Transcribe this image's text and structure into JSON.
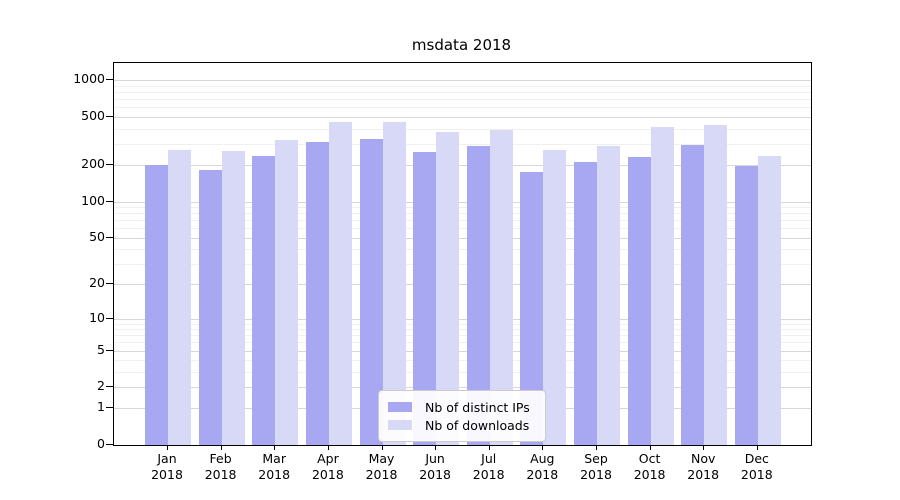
{
  "figure": {
    "background": "#ffffff"
  },
  "chart_data": {
    "type": "bar",
    "title": "msdata 2018",
    "xlabel": "",
    "ylabel": "",
    "year_label": "2018",
    "categories": [
      "Jan",
      "Feb",
      "Mar",
      "Apr",
      "May",
      "Jun",
      "Jul",
      "Aug",
      "Sep",
      "Oct",
      "Nov",
      "Dec"
    ],
    "series": [
      {
        "name": "Nb of distinct IPs",
        "color": "#a8a8f2",
        "values": [
          200,
          182,
          237,
          311,
          329,
          256,
          287,
          177,
          211,
          233,
          293,
          196
        ]
      },
      {
        "name": "Nb of downloads",
        "color": "#d8d8f7",
        "values": [
          269,
          264,
          326,
          455,
          452,
          376,
          391,
          266,
          290,
          410,
          430,
          240
        ]
      }
    ],
    "y_scale": "log10(value+1)",
    "ylim": [
      0,
      1370
    ],
    "y_major_ticks": [
      0,
      1,
      2,
      5,
      10,
      20,
      50,
      100,
      200,
      500,
      1000
    ],
    "y_minor_gridlines": [
      3,
      4,
      6,
      7,
      8,
      9,
      30,
      40,
      60,
      70,
      80,
      90,
      300,
      400,
      600,
      700,
      800,
      900
    ],
    "grid": "on",
    "legend_position": "inside-bottom-center",
    "colors": {
      "major_grid": "#d7d7d7",
      "minor_grid": "#f0f0f0",
      "axis": "#000000",
      "text": "#000000"
    }
  }
}
